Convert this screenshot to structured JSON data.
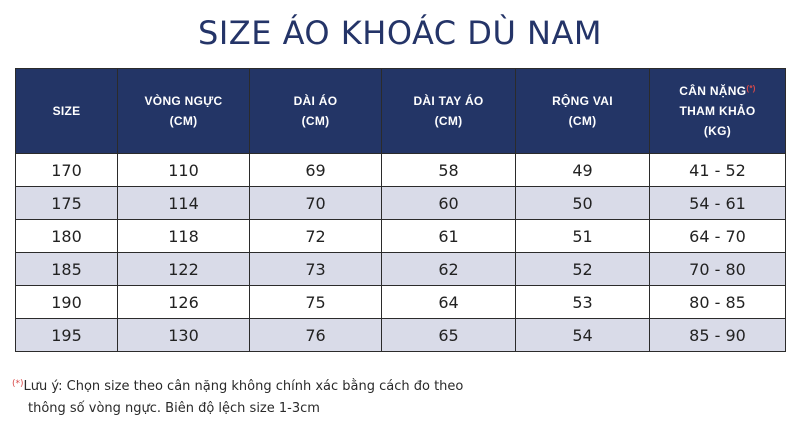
{
  "title": "SIZE ÁO KHOÁC DÙ NAM",
  "table": {
    "headers": [
      {
        "line1": "SIZE",
        "line2": "",
        "line3": ""
      },
      {
        "line1": "VÒNG NGỰC",
        "line2": "(CM)",
        "line3": ""
      },
      {
        "line1": "DÀI ÁO",
        "line2": "(CM)",
        "line3": ""
      },
      {
        "line1": "DÀI TAY ÁO",
        "line2": "(CM)",
        "line3": ""
      },
      {
        "line1": "RỘNG VAI",
        "line2": "(CM)",
        "line3": ""
      },
      {
        "line1": "CÂN NẶNG",
        "star": "(*)",
        "line2": "THAM KHẢO",
        "line3": "(KG)"
      }
    ],
    "rows": [
      [
        "170",
        "110",
        "69",
        "58",
        "49",
        "41 - 52"
      ],
      [
        "175",
        "114",
        "70",
        "60",
        "50",
        "54 - 61"
      ],
      [
        "180",
        "118",
        "72",
        "61",
        "51",
        "64 - 70"
      ],
      [
        "185",
        "122",
        "73",
        "62",
        "52",
        "70 - 80"
      ],
      [
        "190",
        "126",
        "75",
        "64",
        "53",
        "80 - 85"
      ],
      [
        "195",
        "130",
        "76",
        "65",
        "54",
        "85 - 90"
      ]
    ]
  },
  "note": {
    "star": "(*)",
    "line1": "Lưu ý: Chọn size theo cân nặng không chính xác bằng cách đo theo",
    "line2": "thông số vòng ngực. Biên độ lệch size 1-3cm"
  },
  "colors": {
    "header_bg": "#233566",
    "title": "#243468",
    "alt_row": "#d9dbe8",
    "star": "#d94a4a"
  }
}
